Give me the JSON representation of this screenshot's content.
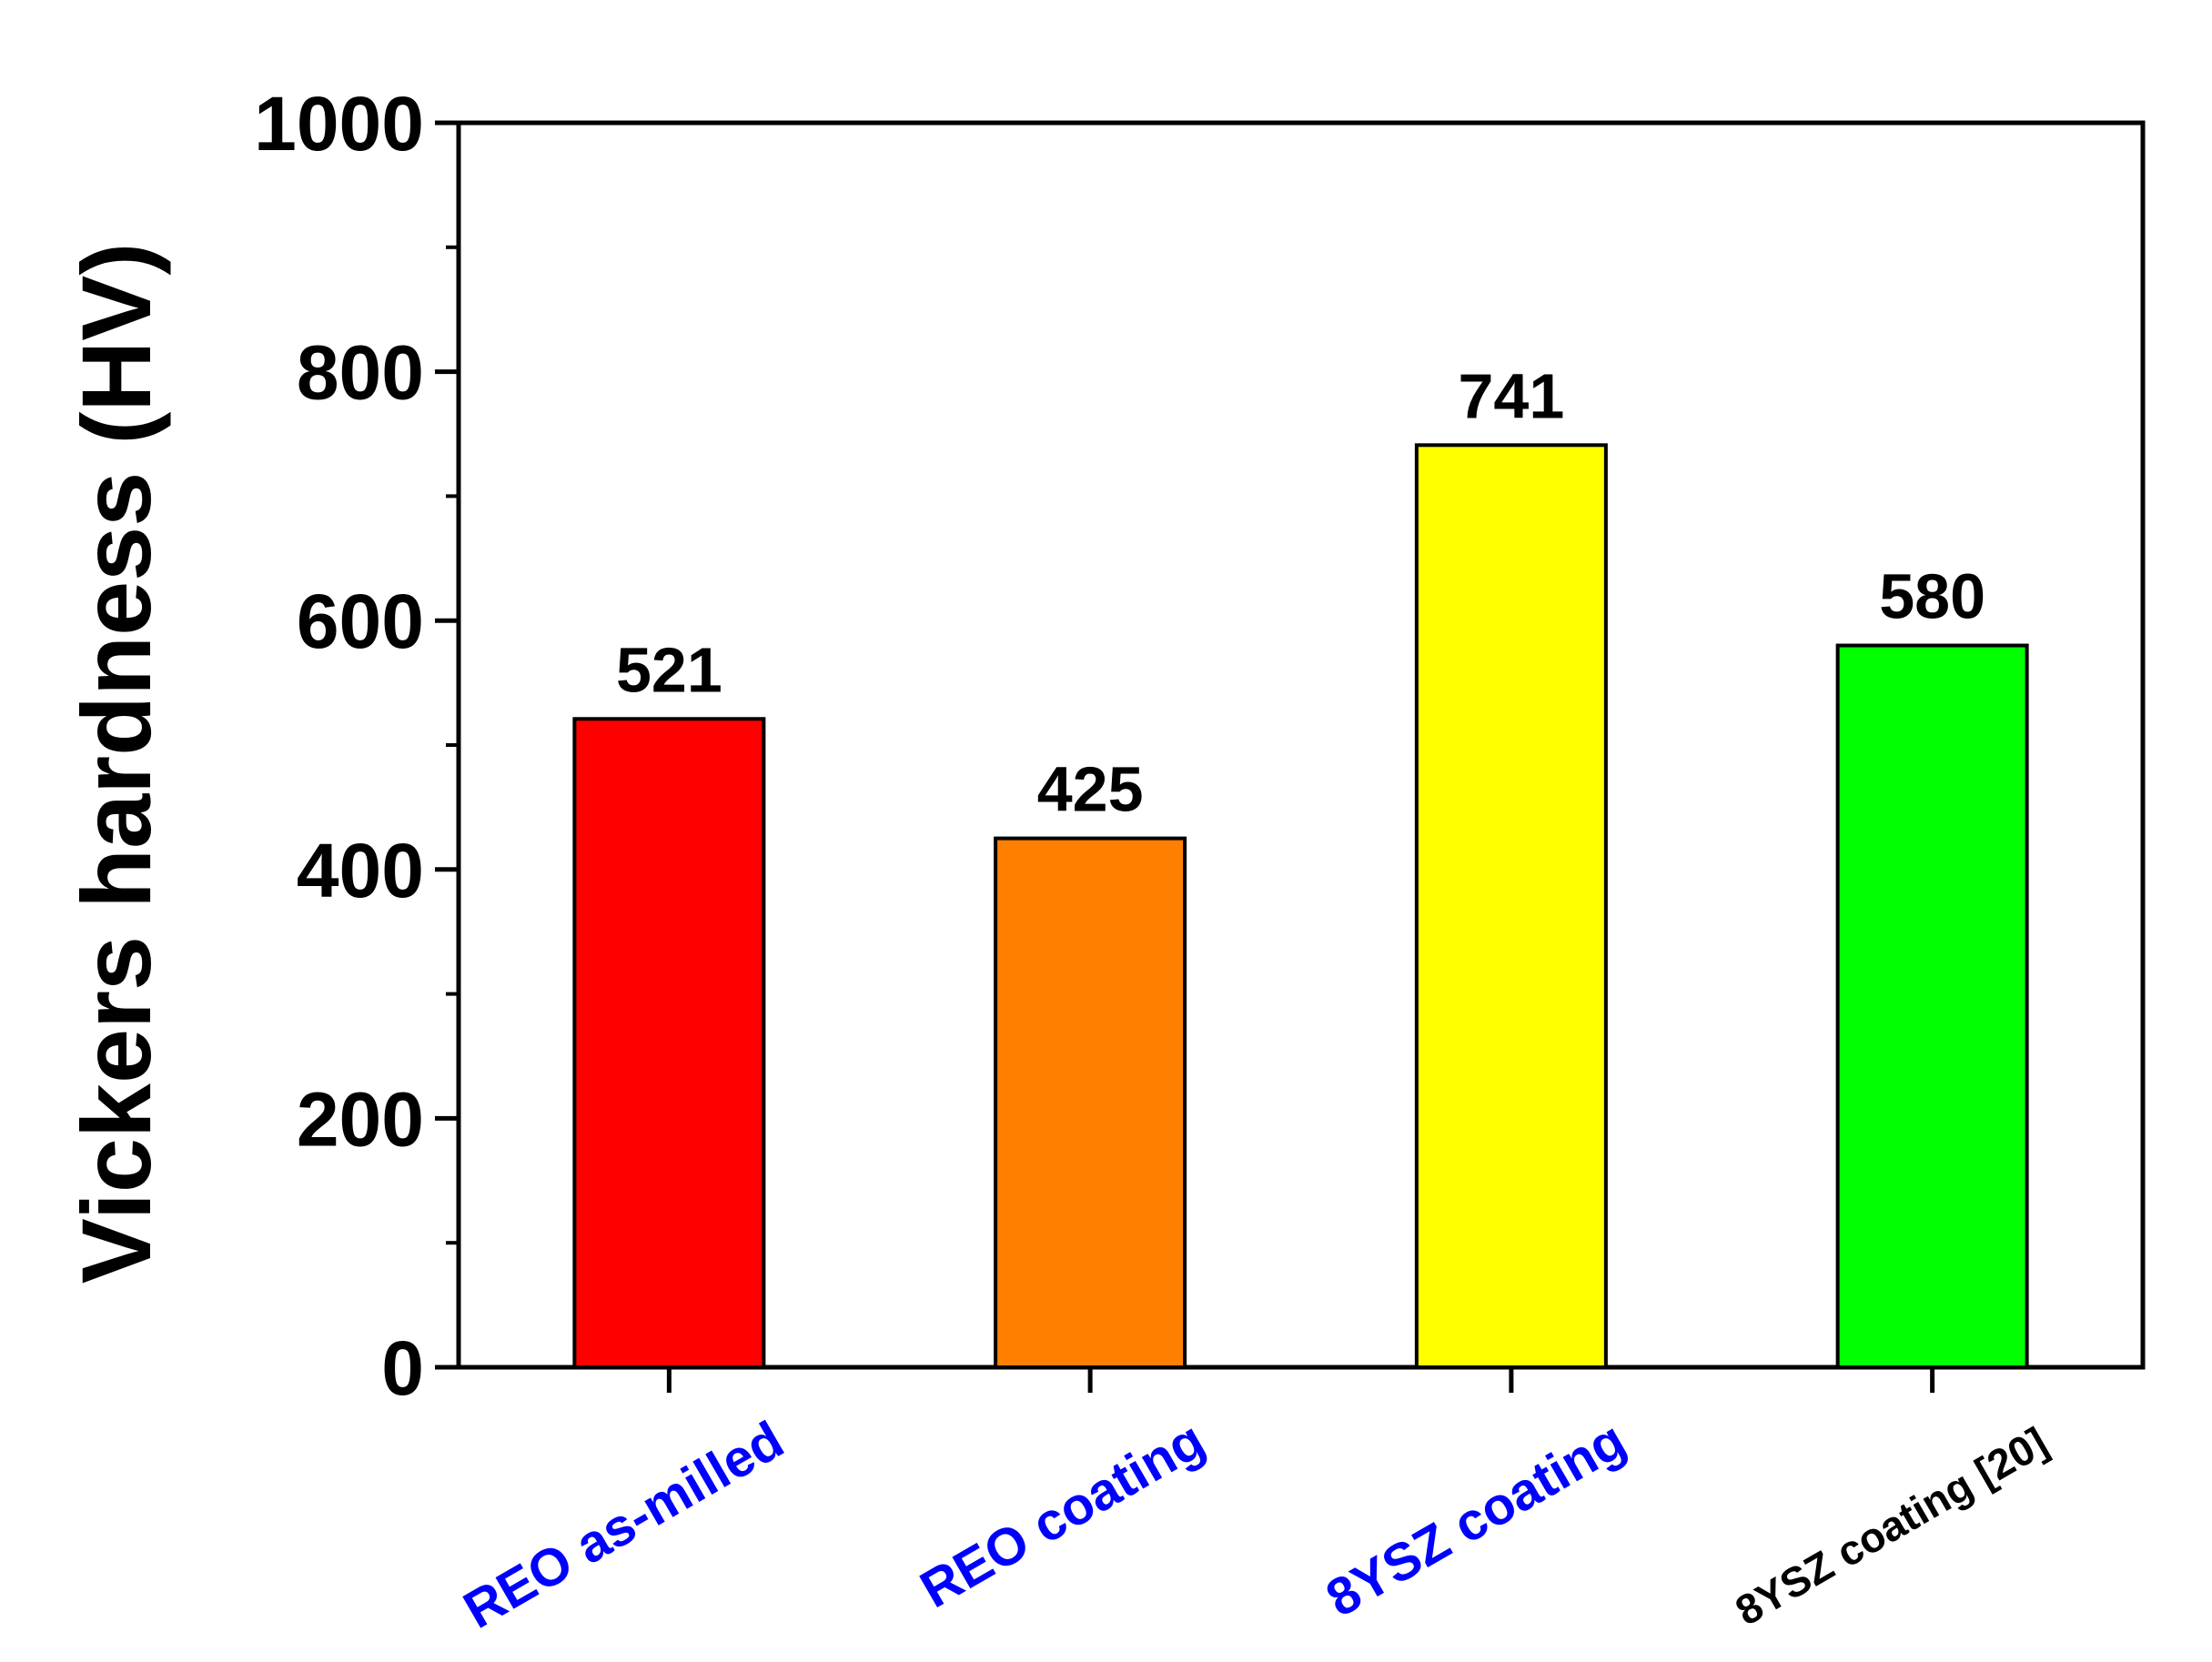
{
  "chart_data": {
    "type": "bar",
    "ylabel": "Vickers hardness (HV)",
    "xlabel": "",
    "ylim": [
      0,
      1000
    ],
    "yticks": [
      0,
      200,
      400,
      600,
      800,
      1000
    ],
    "minor_ticks_per_interval": 1,
    "grid": false,
    "legend": "none",
    "categories": [
      "REO as-milled",
      "REO coating",
      "8YSZ coating",
      "8YSZ coating [20]"
    ],
    "values": [
      521,
      425,
      741,
      580
    ],
    "data_labels": [
      "521",
      "425",
      "741",
      "580"
    ],
    "bar_colors": [
      "#ff0000",
      "#ff8000",
      "#ffff00",
      "#00ff00"
    ],
    "category_label_colors": [
      "#0000ff",
      "#0000ff",
      "#0000ff",
      "#000000"
    ],
    "category_label_rotation_deg": -30
  }
}
